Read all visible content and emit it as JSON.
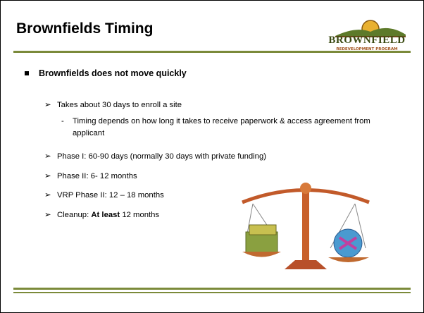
{
  "header": {
    "title": "Brownfields Timing",
    "logo": {
      "name": "BROWNFIELD",
      "subtitle": "REDEVELOPMENT PROGRAM"
    }
  },
  "bullets": [
    {
      "text": "Brownfields does not move quickly",
      "items": [
        {
          "text": "Takes about 30 days to enroll a site",
          "subitems": [
            "Timing depends on how long it takes to receive paperwork & access agreement from applicant"
          ]
        },
        {
          "text": "Phase I: 60-90 days (normally 30 days with private funding)"
        },
        {
          "text": "Phase II: 6- 12 months"
        },
        {
          "text": "VRP Phase II: 12 – 18 months"
        },
        {
          "parts": [
            "Cleanup:",
            "At least",
            "12 months"
          ]
        }
      ]
    }
  ]
}
